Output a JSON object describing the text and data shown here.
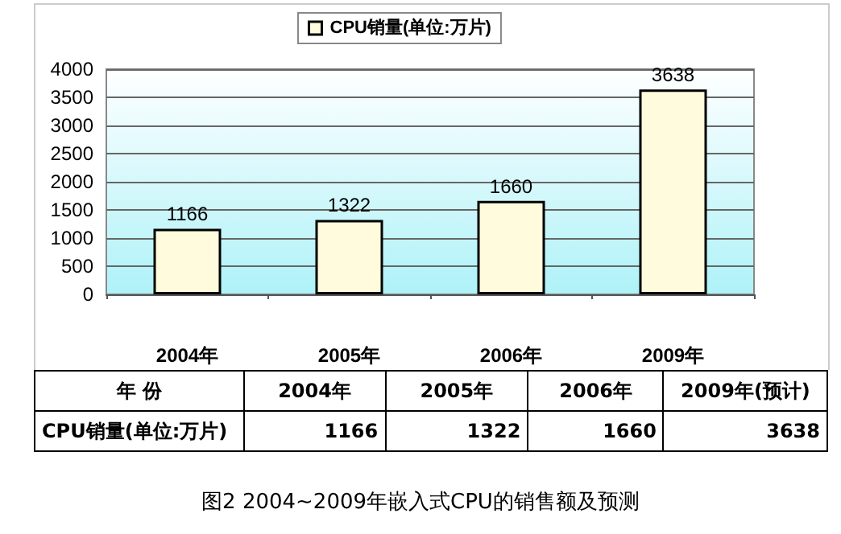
{
  "chart_data": [
    {
      "type": "bar",
      "title": "图2 2004~2009年嵌入式CPU的销售额及预测",
      "categories": [
        "2004年",
        "2005年",
        "2006年",
        "2009年"
      ],
      "series": [
        {
          "name": "CPU销量(单位:万片)",
          "color": "#fffbdc",
          "values": [
            1166,
            1322,
            1660,
            3638
          ]
        }
      ],
      "ylim": [
        0,
        4000
      ],
      "yticks": [
        0,
        500,
        1000,
        1500,
        2000,
        2500,
        3000,
        3500,
        4000
      ],
      "grid": "y",
      "legend": "top",
      "data_labels": true
    },
    {
      "type": "other",
      "categories": [
        "年 份",
        "2004年",
        "2005年",
        "2006年",
        "2009年(预计)"
      ],
      "annotations": [
        "CPU销量(单位:万片)",
        "1166",
        "1322",
        "1660",
        "3638"
      ]
    }
  ]
}
